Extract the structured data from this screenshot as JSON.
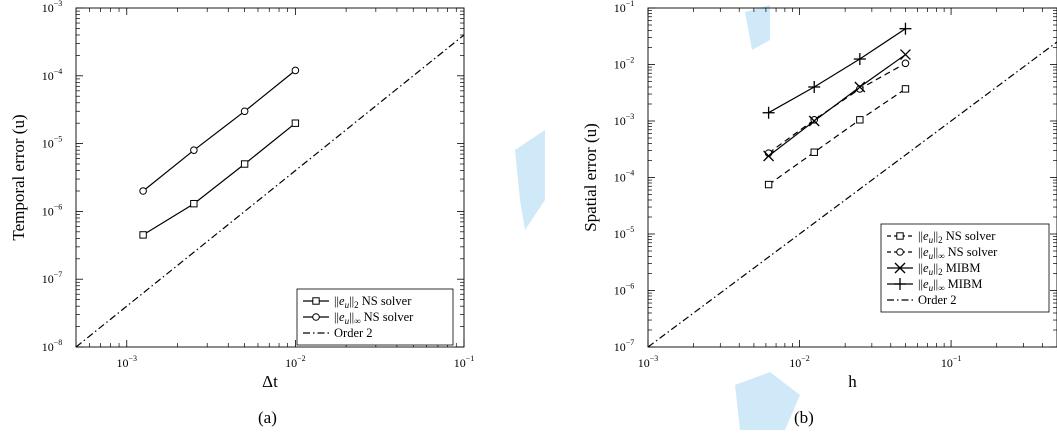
{
  "figure": {
    "watermark_color": "#cfe9f9"
  },
  "chart_data": [
    {
      "type": "line",
      "subcaption": "(a)",
      "xlabel": "Δt",
      "ylabel": "Temporal error (u)",
      "xscale": "log",
      "yscale": "log",
      "xlim": [
        0.0005,
        0.1
      ],
      "ylim": [
        1e-08,
        0.001
      ],
      "x_ticks": [
        {
          "value": 0.001,
          "base": "10",
          "exp": "−3"
        },
        {
          "value": 0.01,
          "base": "10",
          "exp": "−2"
        },
        {
          "value": 0.1,
          "base": "10",
          "exp": "−1"
        }
      ],
      "y_ticks": [
        {
          "value": 1e-08,
          "base": "10",
          "exp": "−8"
        },
        {
          "value": 1e-07,
          "base": "10",
          "exp": "−7"
        },
        {
          "value": 1e-06,
          "base": "10",
          "exp": "−6"
        },
        {
          "value": 1e-05,
          "base": "10",
          "exp": "−5"
        },
        {
          "value": 0.0001,
          "base": "10",
          "exp": "−4"
        },
        {
          "value": 0.001,
          "base": "10",
          "exp": "−3"
        }
      ],
      "grid": false,
      "legend_position": "bottom-right",
      "series": [
        {
          "norm": "2",
          "label": "NS solver",
          "marker": "square",
          "dash": "solid",
          "x": [
            0.00125,
            0.0025,
            0.005,
            0.01
          ],
          "y": [
            4.5e-07,
            1.3e-06,
            5e-06,
            2e-05
          ]
        },
        {
          "norm": "∞",
          "label": "NS solver",
          "marker": "circle",
          "dash": "solid",
          "x": [
            0.00125,
            0.0025,
            0.005,
            0.01
          ],
          "y": [
            2e-06,
            8e-06,
            3e-05,
            0.00012
          ]
        },
        {
          "norm": "",
          "label": "Order 2",
          "marker": "none",
          "dash": "dashdot",
          "x": [
            0.0005,
            0.1
          ],
          "y": [
            1e-08,
            0.0004
          ]
        }
      ]
    },
    {
      "type": "line",
      "subcaption": "(b)",
      "xlabel": "h",
      "ylabel": "Spatial error (u)",
      "xscale": "log",
      "yscale": "log",
      "xlim": [
        0.001,
        0.5
      ],
      "ylim": [
        1e-07,
        0.1
      ],
      "x_ticks": [
        {
          "value": 0.001,
          "base": "10",
          "exp": "−3"
        },
        {
          "value": 0.01,
          "base": "10",
          "exp": "−2"
        },
        {
          "value": 0.1,
          "base": "10",
          "exp": "−1"
        }
      ],
      "y_ticks": [
        {
          "value": 1e-07,
          "base": "10",
          "exp": "−7"
        },
        {
          "value": 1e-06,
          "base": "10",
          "exp": "−6"
        },
        {
          "value": 1e-05,
          "base": "10",
          "exp": "−5"
        },
        {
          "value": 0.0001,
          "base": "10",
          "exp": "−4"
        },
        {
          "value": 0.001,
          "base": "10",
          "exp": "−3"
        },
        {
          "value": 0.01,
          "base": "10",
          "exp": "−2"
        },
        {
          "value": 0.1,
          "base": "10",
          "exp": "−1"
        }
      ],
      "grid": false,
      "legend_position": "bottom-right",
      "series": [
        {
          "norm": "2",
          "label": "NS solver",
          "marker": "square",
          "dash": "dashed",
          "x": [
            0.00625,
            0.0125,
            0.025,
            0.05
          ],
          "y": [
            7.5e-05,
            0.00028,
            0.00105,
            0.0037
          ]
        },
        {
          "norm": "∞",
          "label": "NS solver",
          "marker": "circle",
          "dash": "dashed",
          "x": [
            0.00625,
            0.0125,
            0.025,
            0.05
          ],
          "y": [
            0.00027,
            0.00105,
            0.0037,
            0.0105
          ]
        },
        {
          "norm": "2",
          "label": "MIBM",
          "marker": "x",
          "dash": "solid",
          "x": [
            0.00625,
            0.0125,
            0.025,
            0.05
          ],
          "y": [
            0.00024,
            0.001,
            0.004,
            0.015
          ]
        },
        {
          "norm": "∞",
          "label": "MIBM",
          "marker": "plus",
          "dash": "solid",
          "x": [
            0.00625,
            0.0125,
            0.025,
            0.05
          ],
          "y": [
            0.0014,
            0.004,
            0.0125,
            0.043
          ]
        },
        {
          "norm": "",
          "label": "Order 2",
          "marker": "none",
          "dash": "dashdot",
          "x": [
            0.001,
            0.5
          ],
          "y": [
            1e-07,
            0.025
          ]
        }
      ]
    }
  ]
}
